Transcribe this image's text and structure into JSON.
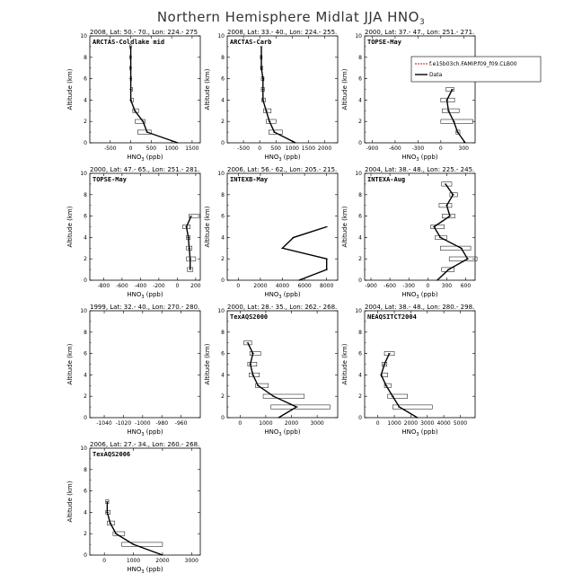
{
  "figure": {
    "title": "Northern Hemisphere Midlat JJA HNO",
    "title_sub": "3",
    "ylabel": "Altitude (km)",
    "xlabel": "HNO",
    "xlabel_sub": "3",
    "xlabel_unit": " (ppb)"
  },
  "legend": {
    "placement": "inside panel 3, top-right",
    "entries": [
      {
        "label": "f.e15b03ch.FAMIP.f09_f09.CLB00",
        "color": "#e00000",
        "style": "dashed"
      },
      {
        "label": "Data",
        "color": "#000000",
        "style": "solid"
      }
    ]
  },
  "chart_data": [
    {
      "type": "line",
      "header": "2008, Lat: 50.- 70., Lon: 224.- 275",
      "campaign": "ARCTAS-Coldlake mid",
      "xlim": [
        -1000,
        1700
      ],
      "ylim": [
        0,
        10
      ],
      "xticks": [
        -500,
        0,
        500,
        1000,
        1500
      ],
      "yticks": [
        0,
        2,
        4,
        6,
        8,
        10
      ],
      "profile": [
        [
          1150,
          0
        ],
        [
          400,
          1
        ],
        [
          300,
          2
        ],
        [
          100,
          3
        ],
        [
          0,
          4
        ],
        [
          0,
          5
        ],
        [
          0,
          6
        ],
        [
          0,
          7
        ],
        [
          0,
          8
        ],
        [
          0,
          9
        ]
      ],
      "boxes": [
        [
          170,
          500,
          1
        ],
        [
          110,
          350,
          2
        ],
        [
          50,
          190,
          3
        ],
        [
          0,
          60,
          4
        ],
        [
          0,
          40,
          5
        ],
        [
          -10,
          20,
          6
        ],
        [
          -20,
          10,
          7
        ],
        [
          -20,
          10,
          8
        ],
        [
          -20,
          10,
          9
        ]
      ]
    },
    {
      "type": "line",
      "header": "2008, Lat: 33.- 40., Lon: 224.- 255.",
      "campaign": "ARCTAS-Carb",
      "xlim": [
        -1000,
        2400
      ],
      "ylim": [
        0,
        10
      ],
      "xticks": [
        -500,
        0,
        500,
        1000,
        1500,
        2000
      ],
      "yticks": [
        0,
        2,
        4,
        6,
        8,
        10
      ],
      "profile": [
        [
          1100,
          0
        ],
        [
          450,
          1
        ],
        [
          300,
          2
        ],
        [
          200,
          3
        ],
        [
          100,
          4
        ],
        [
          100,
          5
        ],
        [
          100,
          6
        ],
        [
          50,
          7
        ],
        [
          50,
          8
        ],
        [
          50,
          9
        ]
      ],
      "boxes": [
        [
          280,
          700,
          1
        ],
        [
          200,
          500,
          2
        ],
        [
          120,
          350,
          3
        ],
        [
          70,
          170,
          4
        ],
        [
          50,
          140,
          5
        ],
        [
          50,
          130,
          6
        ],
        [
          30,
          90,
          7
        ],
        [
          20,
          70,
          8
        ]
      ]
    },
    {
      "type": "line",
      "header": "2000, Lat: 37.- 47., Lon: 251.- 271.",
      "campaign": "TOPSE-May",
      "xlim": [
        -1000,
        450
      ],
      "ylim": [
        0,
        10
      ],
      "xticks": [
        -900,
        -600,
        -300,
        0,
        300
      ],
      "yticks": [
        0,
        2,
        4,
        6,
        8,
        10
      ],
      "profile": [
        [
          320,
          0
        ],
        [
          220,
          1
        ],
        [
          170,
          2
        ],
        [
          100,
          3
        ],
        [
          80,
          4
        ],
        [
          150,
          5
        ]
      ],
      "boxes": [
        [
          200,
          250,
          1
        ],
        [
          0,
          420,
          2
        ],
        [
          20,
          240,
          3
        ],
        [
          0,
          180,
          4
        ],
        [
          70,
          170,
          5
        ]
      ]
    },
    {
      "type": "line",
      "header": "2000, Lat: 47.- 65., Lon: 251.- 281.",
      "campaign": "TOPSE-May",
      "xlim": [
        -950,
        250
      ],
      "ylim": [
        0,
        10
      ],
      "xticks": [
        -800,
        -600,
        -400,
        -200,
        0,
        200
      ],
      "yticks": [
        0,
        2,
        4,
        6,
        8,
        10
      ],
      "profile": [
        [
          140,
          1
        ],
        [
          140,
          2
        ],
        [
          130,
          3
        ],
        [
          120,
          4
        ],
        [
          100,
          5
        ],
        [
          150,
          6
        ]
      ],
      "boxes": [
        [
          110,
          170,
          1
        ],
        [
          100,
          200,
          2
        ],
        [
          100,
          160,
          3
        ],
        [
          100,
          140,
          4
        ],
        [
          60,
          140,
          5
        ],
        [
          130,
          250,
          6
        ]
      ]
    },
    {
      "type": "line",
      "header": "2006, Lat: 56.- 62., Lon: 205.- 215.",
      "campaign": "INTEXB-May",
      "xlim": [
        -1000,
        9000
      ],
      "ylim": [
        0,
        10
      ],
      "xticks": [
        0,
        2000,
        4000,
        6000,
        8000
      ],
      "yticks": [
        0,
        2,
        4,
        6,
        8,
        10
      ],
      "profile": [
        [
          5500,
          0
        ],
        [
          8000,
          1
        ],
        [
          8000,
          2
        ],
        [
          4000,
          3
        ],
        [
          5000,
          4
        ],
        [
          8000,
          5
        ]
      ],
      "boxes": []
    },
    {
      "type": "line",
      "header": "2004, Lat: 38.- 48., Lon: 225.- 245.",
      "campaign": "INTEXA-Aug",
      "xlim": [
        -1000,
        750
      ],
      "ylim": [
        0,
        10
      ],
      "xticks": [
        -900,
        -600,
        -300,
        0,
        300,
        600
      ],
      "yticks": [
        0,
        2,
        4,
        6,
        8,
        10
      ],
      "profile": [
        [
          150,
          0
        ],
        [
          330,
          1
        ],
        [
          630,
          2
        ],
        [
          530,
          3
        ],
        [
          200,
          4
        ],
        [
          100,
          5
        ],
        [
          350,
          6
        ],
        [
          300,
          7
        ],
        [
          400,
          8
        ],
        [
          280,
          9
        ]
      ],
      "boxes": [
        [
          220,
          420,
          1
        ],
        [
          340,
          780,
          2
        ],
        [
          200,
          680,
          3
        ],
        [
          120,
          300,
          4
        ],
        [
          50,
          260,
          5
        ],
        [
          230,
          430,
          6
        ],
        [
          180,
          380,
          7
        ],
        [
          350,
          470,
          8
        ],
        [
          220,
          380,
          9
        ]
      ]
    },
    {
      "type": "line",
      "header": "1999, Lat: 32.- 40., Lon: 270.- 280.",
      "campaign": "",
      "xlim": [
        -1055,
        -940
      ],
      "ylim": [
        0,
        10
      ],
      "xticks": [
        -1040,
        -1020,
        -1000,
        -980,
        -960
      ],
      "yticks": [
        0,
        2,
        4,
        6,
        8,
        10
      ],
      "profile": [],
      "boxes": []
    },
    {
      "type": "line",
      "header": "2000, Lat: 28.- 35., Lon: 262.- 268.",
      "campaign": "TexAQS2000",
      "xlim": [
        -500,
        3800
      ],
      "ylim": [
        0,
        10
      ],
      "xticks": [
        0,
        1000,
        2000,
        3000
      ],
      "yticks": [
        0,
        2,
        4,
        6,
        8,
        10
      ],
      "profile": [
        [
          1500,
          0
        ],
        [
          2200,
          1
        ],
        [
          1300,
          2
        ],
        [
          700,
          3
        ],
        [
          500,
          4
        ],
        [
          400,
          5
        ],
        [
          500,
          6
        ],
        [
          300,
          7
        ]
      ],
      "boxes": [
        [
          1200,
          3500,
          1
        ],
        [
          900,
          2500,
          2
        ],
        [
          600,
          1100,
          3
        ],
        [
          350,
          750,
          4
        ],
        [
          300,
          650,
          5
        ],
        [
          380,
          800,
          6
        ],
        [
          150,
          450,
          7
        ]
      ]
    },
    {
      "type": "line",
      "header": "2004, Lat: 38.- 48., Lon: 280.- 298.",
      "campaign": "NEAQSITCT2004",
      "xlim": [
        -800,
        5900
      ],
      "ylim": [
        0,
        10
      ],
      "xticks": [
        0,
        1000,
        2000,
        3000,
        4000,
        5000
      ],
      "yticks": [
        0,
        2,
        4,
        6,
        8,
        10
      ],
      "profile": [
        [
          2400,
          0
        ],
        [
          1300,
          1
        ],
        [
          900,
          2
        ],
        [
          500,
          3
        ],
        [
          200,
          4
        ],
        [
          400,
          5
        ],
        [
          700,
          6
        ]
      ],
      "boxes": [
        [
          900,
          3300,
          1
        ],
        [
          600,
          1800,
          2
        ],
        [
          400,
          800,
          3
        ],
        [
          200,
          600,
          4
        ],
        [
          250,
          550,
          5
        ],
        [
          400,
          1000,
          6
        ]
      ]
    },
    {
      "type": "line",
      "header": "2006, Lat: 27.- 34., Lon: 260.- 268.",
      "campaign": "TexAQS2006",
      "xlim": [
        -500,
        3300
      ],
      "ylim": [
        0,
        10
      ],
      "xticks": [
        0,
        1000,
        2000,
        3000
      ],
      "yticks": [
        0,
        2,
        4,
        6,
        8,
        10
      ],
      "profile": [
        [
          2000,
          0
        ],
        [
          1000,
          1
        ],
        [
          400,
          2
        ],
        [
          200,
          3
        ],
        [
          100,
          4
        ],
        [
          100,
          5
        ]
      ],
      "boxes": [
        [
          600,
          2000,
          1
        ],
        [
          300,
          700,
          2
        ],
        [
          100,
          350,
          3
        ],
        [
          50,
          200,
          4
        ],
        [
          50,
          150,
          5
        ]
      ]
    }
  ]
}
